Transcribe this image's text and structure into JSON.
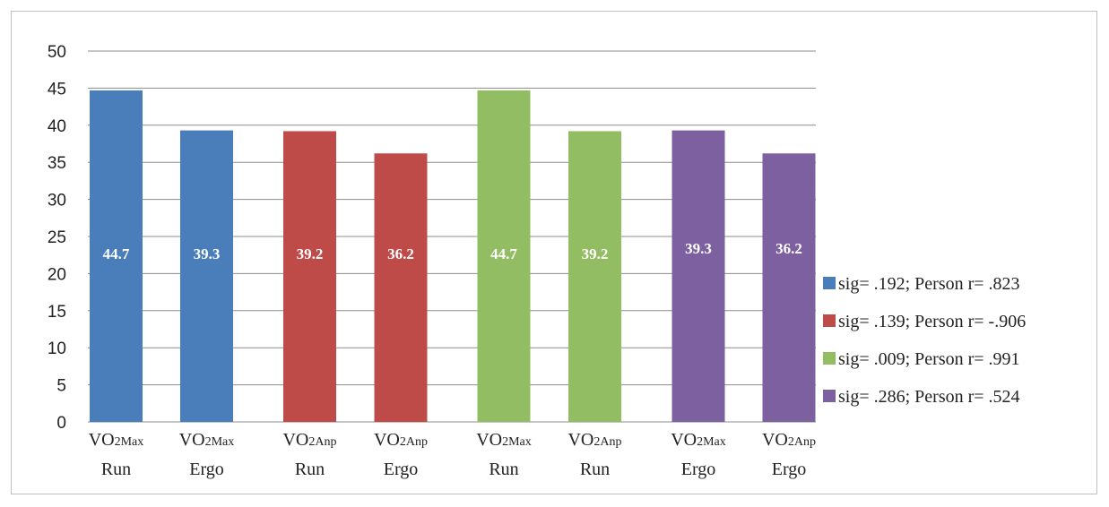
{
  "chart_data": {
    "type": "bar",
    "ylim": [
      0,
      50
    ],
    "yticks": [
      0,
      5,
      10,
      15,
      20,
      25,
      30,
      35,
      40,
      45,
      50
    ],
    "grid": true,
    "legend_position": "right",
    "bars": [
      {
        "label_main": "VO",
        "label_sub": "2Max",
        "label_line2": "Run",
        "value": 44.7,
        "data_label": "44.7",
        "group": 0
      },
      {
        "label_main": "VO",
        "label_sub": "2Max",
        "label_line2": "Ergo",
        "value": 39.3,
        "data_label": "39.3",
        "group": 0
      },
      {
        "label_main": "VO",
        "label_sub": "2Anp",
        "label_line2": "Run",
        "value": 39.2,
        "data_label": "39.2",
        "group": 1
      },
      {
        "label_main": "VO",
        "label_sub": "2Anp",
        "label_line2": "Ergo",
        "value": 36.2,
        "data_label": "36.2",
        "group": 1
      },
      {
        "label_main": "VO",
        "label_sub": "2Max",
        "label_line2": "Run",
        "value": 44.7,
        "data_label": "44.7",
        "group": 2
      },
      {
        "label_main": "VO",
        "label_sub": "2Anp",
        "label_line2": "Run",
        "value": 39.2,
        "data_label": "39.2",
        "group": 2
      },
      {
        "label_main": "VO",
        "label_sub": "2Max",
        "label_line2": "Ergo",
        "value": 39.3,
        "data_label": "39.3",
        "group": 3
      },
      {
        "label_main": "VO",
        "label_sub": "2Anp",
        "label_line2": "Ergo",
        "value": 36.2,
        "data_label": "36.2",
        "group": 3
      }
    ],
    "series": [
      {
        "name": "sig= .192; Person r= .823",
        "color": "#4a7ebb"
      },
      {
        "name": "sig= .139; Person r= -.906",
        "color": "#be4b48"
      },
      {
        "name": "sig= .009; Person r= .991",
        "color": "#93bd63"
      },
      {
        "name": "sig= .286; Person r= .524",
        "color": "#7d60a0"
      }
    ]
  }
}
